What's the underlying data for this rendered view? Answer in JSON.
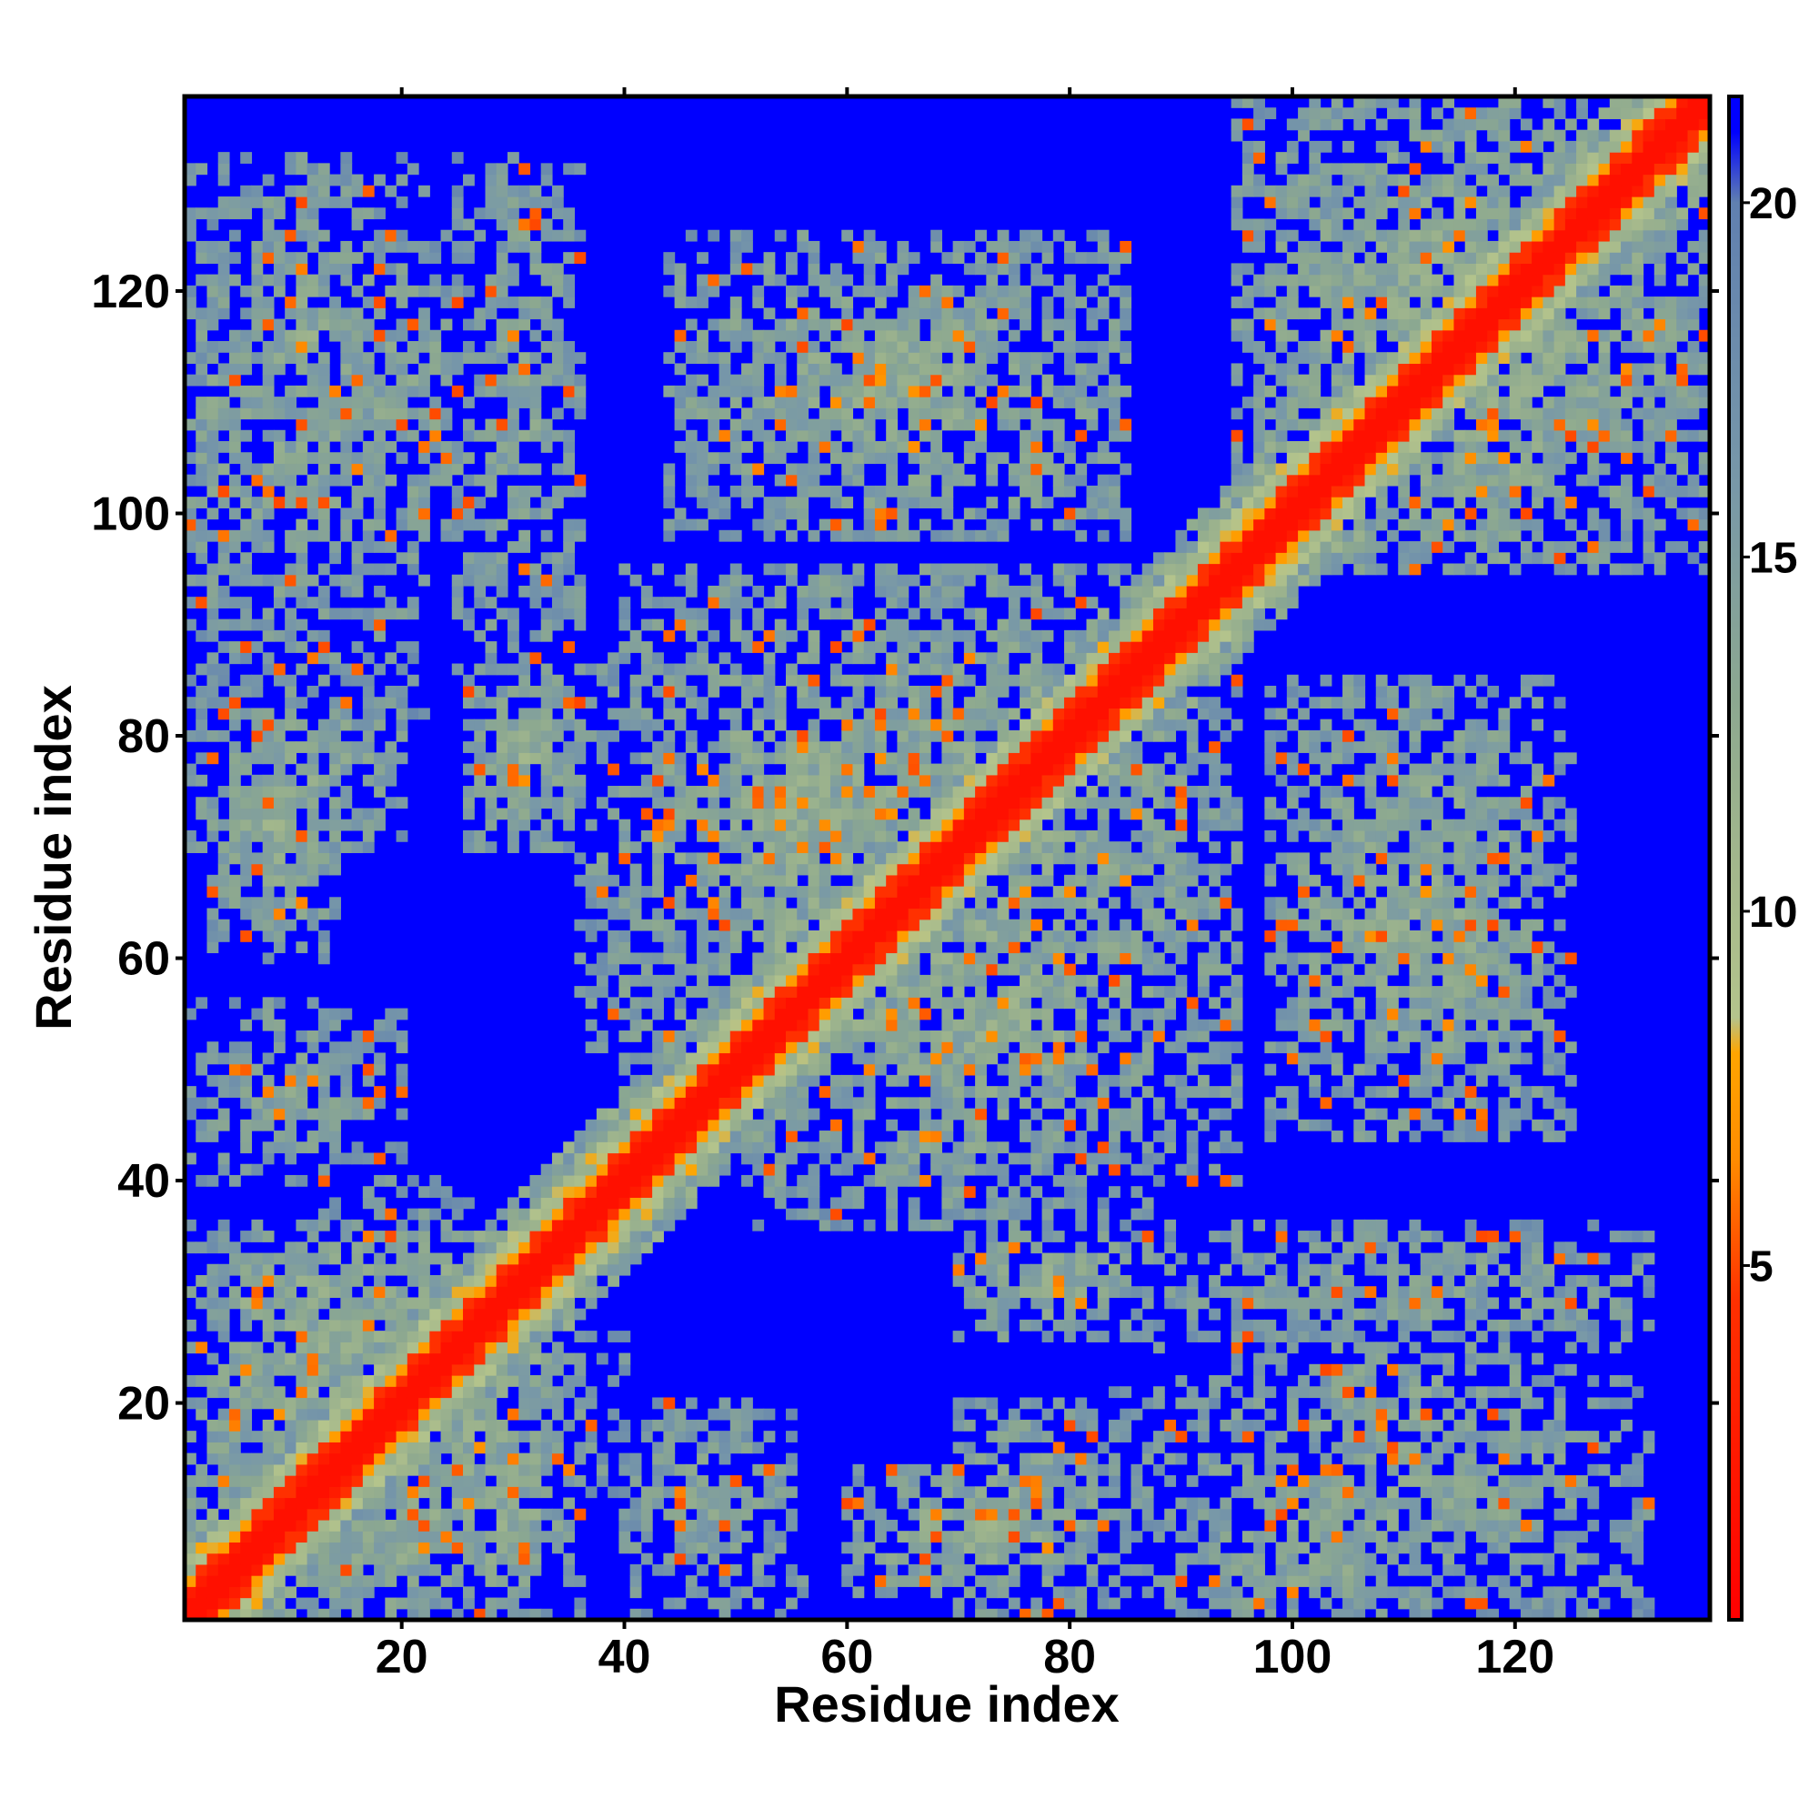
{
  "chart_data": {
    "type": "heatmap",
    "title": "",
    "xlabel": "Residue index",
    "ylabel": "Residue index",
    "n_residues": 137,
    "xlim": [
      0.5,
      137.5
    ],
    "ylim": [
      0.5,
      137.5
    ],
    "x_ticks": [
      20,
      40,
      60,
      80,
      100,
      120
    ],
    "y_ticks": [
      20,
      40,
      60,
      80,
      100,
      120
    ],
    "x_tick_labels": [
      "20",
      "40",
      "60",
      "80",
      "100",
      "120"
    ],
    "y_tick_labels": [
      "20",
      "40",
      "60",
      "80",
      "100",
      "120"
    ],
    "symmetric": true,
    "grid": false,
    "colorbar": {
      "min": 0,
      "max": 21.5,
      "ticks": [
        5,
        10,
        15,
        20
      ],
      "tick_labels": [
        "5",
        "10",
        "15",
        "20"
      ],
      "position": "right",
      "stops": [
        {
          "value": 0.0,
          "color": "#ff0000"
        },
        {
          "value": 4.5,
          "color": "#ff3000"
        },
        {
          "value": 6.5,
          "color": "#ff8c00"
        },
        {
          "value": 8.0,
          "color": "#ffa500"
        },
        {
          "value": 8.5,
          "color": "#b4c48c"
        },
        {
          "value": 10.5,
          "color": "#a4b88c"
        },
        {
          "value": 13.0,
          "color": "#8ca890"
        },
        {
          "value": 16.0,
          "color": "#7898a8"
        },
        {
          "value": 20.0,
          "color": "#6080b0"
        },
        {
          "value": 21.0,
          "color": "#0000ff"
        },
        {
          "value": 21.5,
          "color": "#0000ff"
        }
      ]
    },
    "background_value": 21.5,
    "diagonal": {
      "core_value": 1.5,
      "band_value_1": 4.5,
      "band_value_2": 7.5
    },
    "contact_regions": [
      {
        "i": [
          1,
          35
        ],
        "j": [
          1,
          35
        ],
        "level": 0.85
      },
      {
        "i": [
          5,
          26
        ],
        "j": [
          5,
          26
        ],
        "level": 0.95
      },
      {
        "i": [
          40,
          95
        ],
        "j": [
          40,
          95
        ],
        "level": 0.75
      },
      {
        "i": [
          95,
          137
        ],
        "j": [
          95,
          137
        ],
        "level": 0.8
      },
      {
        "i": [
          1,
          22
        ],
        "j": [
          22,
          36
        ],
        "level": 0.7
      },
      {
        "i": [
          3,
          14
        ],
        "j": [
          60,
          84
        ],
        "level": 0.75
      },
      {
        "i": [
          4,
          20
        ],
        "j": [
          104,
          128
        ],
        "level": 0.65
      },
      {
        "i": [
          26,
          36
        ],
        "j": [
          70,
          86
        ],
        "level": 0.75
      },
      {
        "i": [
          25,
          36
        ],
        "j": [
          86,
          132
        ],
        "level": 0.55
      },
      {
        "i": [
          40,
          55
        ],
        "j": [
          3,
          20
        ],
        "level": 0.55
      },
      {
        "i": [
          44,
          66
        ],
        "j": [
          58,
          88
        ],
        "level": 0.75
      },
      {
        "i": [
          44,
          85
        ],
        "j": [
          98,
          125
        ],
        "level": 0.7
      },
      {
        "i": [
          70,
          84
        ],
        "j": [
          1,
          20
        ],
        "level": 0.65
      },
      {
        "i": [
          82,
          132
        ],
        "j": [
          1,
          22
        ],
        "level": 0.55
      },
      {
        "i": [
          88,
          122
        ],
        "j": [
          1,
          8
        ],
        "level": 0.6
      },
      {
        "i": [
          26,
          33
        ],
        "j": [
          4,
          9
        ],
        "level": 0.75
      },
      {
        "i": [
          52,
          87
        ],
        "j": [
          36,
          52
        ],
        "level": 0.55
      },
      {
        "i": [
          95,
          125
        ],
        "j": [
          10,
          28
        ],
        "level": 0.55
      },
      {
        "i": [
          1,
          14
        ],
        "j": [
          40,
          56
        ],
        "level": 0.45
      },
      {
        "i": [
          12,
          26
        ],
        "j": [
          26,
          40
        ],
        "level": 0.45
      },
      {
        "i": [
          100,
          130
        ],
        "j": [
          28,
          36
        ],
        "level": 0.5
      }
    ]
  }
}
